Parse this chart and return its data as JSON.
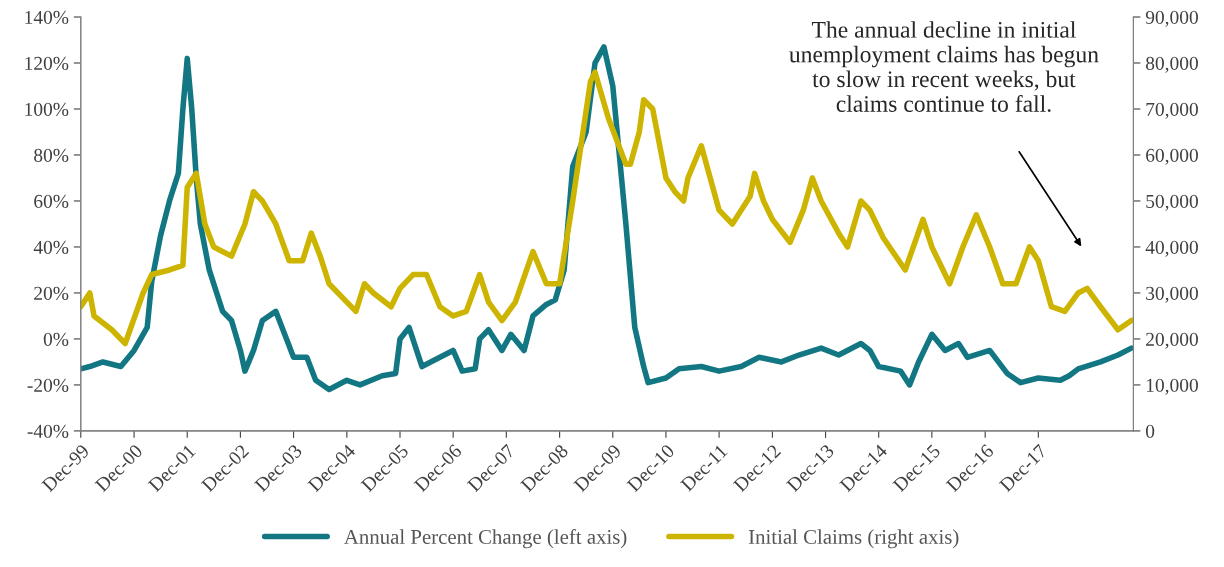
{
  "chart_data": {
    "type": "line",
    "series": [
      {
        "name": "Annual Percent Change (left axis)",
        "color": "#127783",
        "axis": "y",
        "x": [
          "1999-12",
          "2000-02",
          "2000-05",
          "2000-09",
          "2000-12",
          "2001-03",
          "2001-04",
          "2001-06",
          "2001-08",
          "2001-10",
          "2001-11",
          "2001-12",
          "2002-01",
          "2002-02",
          "2002-03",
          "2002-05",
          "2002-08",
          "2002-10",
          "2002-12",
          "2003-01",
          "2003-03",
          "2003-05",
          "2003-08",
          "2003-10",
          "2003-12",
          "2004-03",
          "2004-05",
          "2004-08",
          "2004-12",
          "2005-03",
          "2005-08",
          "2005-11",
          "2005-12",
          "2006-02",
          "2006-05",
          "2006-09",
          "2006-12",
          "2007-02",
          "2007-05",
          "2007-06",
          "2007-08",
          "2007-11",
          "2008-01",
          "2008-04",
          "2008-06",
          "2008-09",
          "2008-11",
          "2009-01",
          "2009-03",
          "2009-06",
          "2009-08",
          "2009-10",
          "2009-12",
          "2010-03",
          "2010-05",
          "2010-07",
          "2010-08",
          "2010-12",
          "2011-03",
          "2011-08",
          "2011-12",
          "2012-05",
          "2012-09",
          "2013-02",
          "2013-06",
          "2013-11",
          "2014-03",
          "2014-08",
          "2014-10",
          "2014-12",
          "2015-05",
          "2015-07",
          "2015-09",
          "2015-12",
          "2016-03",
          "2016-06",
          "2016-08",
          "2017-01",
          "2017-05",
          "2017-08",
          "2017-12",
          "2018-05",
          "2018-07",
          "2018-09",
          "2019-02",
          "2019-06",
          "2019-09"
        ],
        "values": [
          -13,
          -12,
          -10,
          -12,
          -5,
          5,
          25,
          45,
          60,
          72,
          100,
          122,
          100,
          70,
          50,
          30,
          12,
          8,
          -5,
          -14,
          -5,
          8,
          12,
          2,
          -8,
          -8,
          -18,
          -22,
          -18,
          -20,
          -16,
          -15,
          0,
          5,
          -12,
          -8,
          -5,
          -14,
          -13,
          0,
          4,
          -5,
          2,
          -5,
          10,
          15,
          17,
          30,
          75,
          90,
          120,
          127,
          110,
          50,
          5,
          -12,
          -19,
          -17,
          -13,
          -12,
          -14,
          -12,
          -8,
          -10,
          -7,
          -4,
          -7,
          -2,
          -5,
          -12,
          -14,
          -20,
          -10,
          2,
          -5,
          -2,
          -8,
          -5,
          -15,
          -19,
          -17,
          -18,
          -16,
          -13,
          -10,
          -7,
          -4
        ]
      },
      {
        "name": "Initial Claims (right axis)",
        "color": "#ccb400",
        "axis": "y2",
        "x": [
          "1999-12",
          "2000-02",
          "2000-03",
          "2000-07",
          "2000-10",
          "2001-02",
          "2001-04",
          "2001-08",
          "2001-11",
          "2001-12",
          "2002-02",
          "2002-04",
          "2002-06",
          "2002-10",
          "2003-01",
          "2003-03",
          "2003-05",
          "2003-08",
          "2003-11",
          "2004-02",
          "2004-04",
          "2004-06",
          "2004-08",
          "2004-12",
          "2005-02",
          "2005-04",
          "2005-06",
          "2005-10",
          "2005-12",
          "2006-03",
          "2006-06",
          "2006-09",
          "2006-12",
          "2007-03",
          "2007-06",
          "2007-08",
          "2007-11",
          "2008-02",
          "2008-06",
          "2008-09",
          "2008-12",
          "2009-03",
          "2009-07",
          "2009-08",
          "2009-11",
          "2010-03",
          "2010-04",
          "2010-06",
          "2010-07",
          "2010-09",
          "2010-12",
          "2011-02",
          "2011-04",
          "2011-05",
          "2011-08",
          "2011-10",
          "2011-12",
          "2012-03",
          "2012-07",
          "2012-08",
          "2012-10",
          "2012-12",
          "2013-04",
          "2013-07",
          "2013-09",
          "2013-11",
          "2014-03",
          "2014-05",
          "2014-08",
          "2014-10",
          "2015-01",
          "2015-06",
          "2015-10",
          "2015-12",
          "2016-04",
          "2016-07",
          "2016-10",
          "2017-01",
          "2017-04",
          "2017-07",
          "2017-10",
          "2017-12",
          "2018-03",
          "2018-06",
          "2018-09",
          "2018-11",
          "2019-02",
          "2019-06",
          "2019-09"
        ],
        "values": [
          27000,
          30000,
          25000,
          22000,
          19000,
          30000,
          34000,
          35000,
          36000,
          53000,
          56000,
          45000,
          40000,
          38000,
          45000,
          52000,
          50000,
          45000,
          37000,
          37000,
          43000,
          38000,
          32000,
          28000,
          26000,
          32000,
          30000,
          27000,
          31000,
          34000,
          34000,
          27000,
          25000,
          26000,
          34000,
          28000,
          24000,
          28000,
          39000,
          32000,
          32000,
          50000,
          76000,
          78000,
          68000,
          58000,
          58000,
          65000,
          72000,
          70000,
          55000,
          52000,
          50000,
          55000,
          62000,
          55000,
          48000,
          45000,
          51000,
          56000,
          50000,
          46000,
          41000,
          48000,
          55000,
          50000,
          43000,
          40000,
          50000,
          48000,
          42000,
          35000,
          46000,
          40000,
          32000,
          40000,
          47000,
          40000,
          32000,
          32000,
          40000,
          37000,
          27000,
          26000,
          30000,
          31000,
          27000,
          22000,
          24000
        ]
      }
    ],
    "xlim": [
      "1999-12-01",
      "2019-09-15"
    ],
    "xticks": [
      {
        "value": "1999-12-01",
        "label": "Dec-99"
      },
      {
        "value": "2000-12-01",
        "label": "Dec-00"
      },
      {
        "value": "2001-12-01",
        "label": "Dec-01"
      },
      {
        "value": "2002-12-01",
        "label": "Dec-02"
      },
      {
        "value": "2003-12-01",
        "label": "Dec-03"
      },
      {
        "value": "2004-12-01",
        "label": "Dec-04"
      },
      {
        "value": "2005-12-01",
        "label": "Dec-05"
      },
      {
        "value": "2006-12-01",
        "label": "Dec-06"
      },
      {
        "value": "2007-12-01",
        "label": "Dec-07"
      },
      {
        "value": "2008-12-01",
        "label": "Dec-08"
      },
      {
        "value": "2009-12-01",
        "label": "Dec-09"
      },
      {
        "value": "2010-12-01",
        "label": "Dec-10"
      },
      {
        "value": "2011-12-01",
        "label": "Dec-11"
      },
      {
        "value": "2012-12-01",
        "label": "Dec-12"
      },
      {
        "value": "2013-12-01",
        "label": "Dec-13"
      },
      {
        "value": "2014-12-01",
        "label": "Dec-14"
      },
      {
        "value": "2015-12-01",
        "label": "Dec-15"
      },
      {
        "value": "2016-12-01",
        "label": "Dec-16"
      },
      {
        "value": "2017-12-01",
        "label": "Dec-17"
      }
    ],
    "ylim": [
      -40,
      140
    ],
    "yticks": [
      {
        "value": -40,
        "label": "-40%"
      },
      {
        "value": -20,
        "label": "-20%"
      },
      {
        "value": 0,
        "label": "0%"
      },
      {
        "value": 20,
        "label": "20%"
      },
      {
        "value": 40,
        "label": "40%"
      },
      {
        "value": 60,
        "label": "60%"
      },
      {
        "value": 80,
        "label": "80%"
      },
      {
        "value": 100,
        "label": "100%"
      },
      {
        "value": 120,
        "label": "120%"
      },
      {
        "value": 140,
        "label": "140%"
      }
    ],
    "y2lim": [
      0,
      90000
    ],
    "y2ticks": [
      0,
      {
        "value": 10000,
        "label": "10,000"
      },
      {
        "value": 20000,
        "label": "20,000"
      },
      {
        "value": 30000,
        "label": "30,000"
      },
      {
        "value": 40000,
        "label": "40,000"
      },
      {
        "value": 50000,
        "label": "50,000"
      },
      {
        "value": 60000,
        "label": "60,000"
      },
      {
        "value": 70000,
        "label": "70,000"
      },
      {
        "value": 80000,
        "label": "80,000"
      },
      {
        "value": 90000,
        "label": "90,000"
      }
    ],
    "annotations": [
      "The annual decline in initial\nunemployment claims has begun\nto slow in recent weeks, but\nclaims continue to fall."
    ],
    "grid": false,
    "legend": "bottom",
    "marker": "none",
    "line_style": "solid"
  }
}
